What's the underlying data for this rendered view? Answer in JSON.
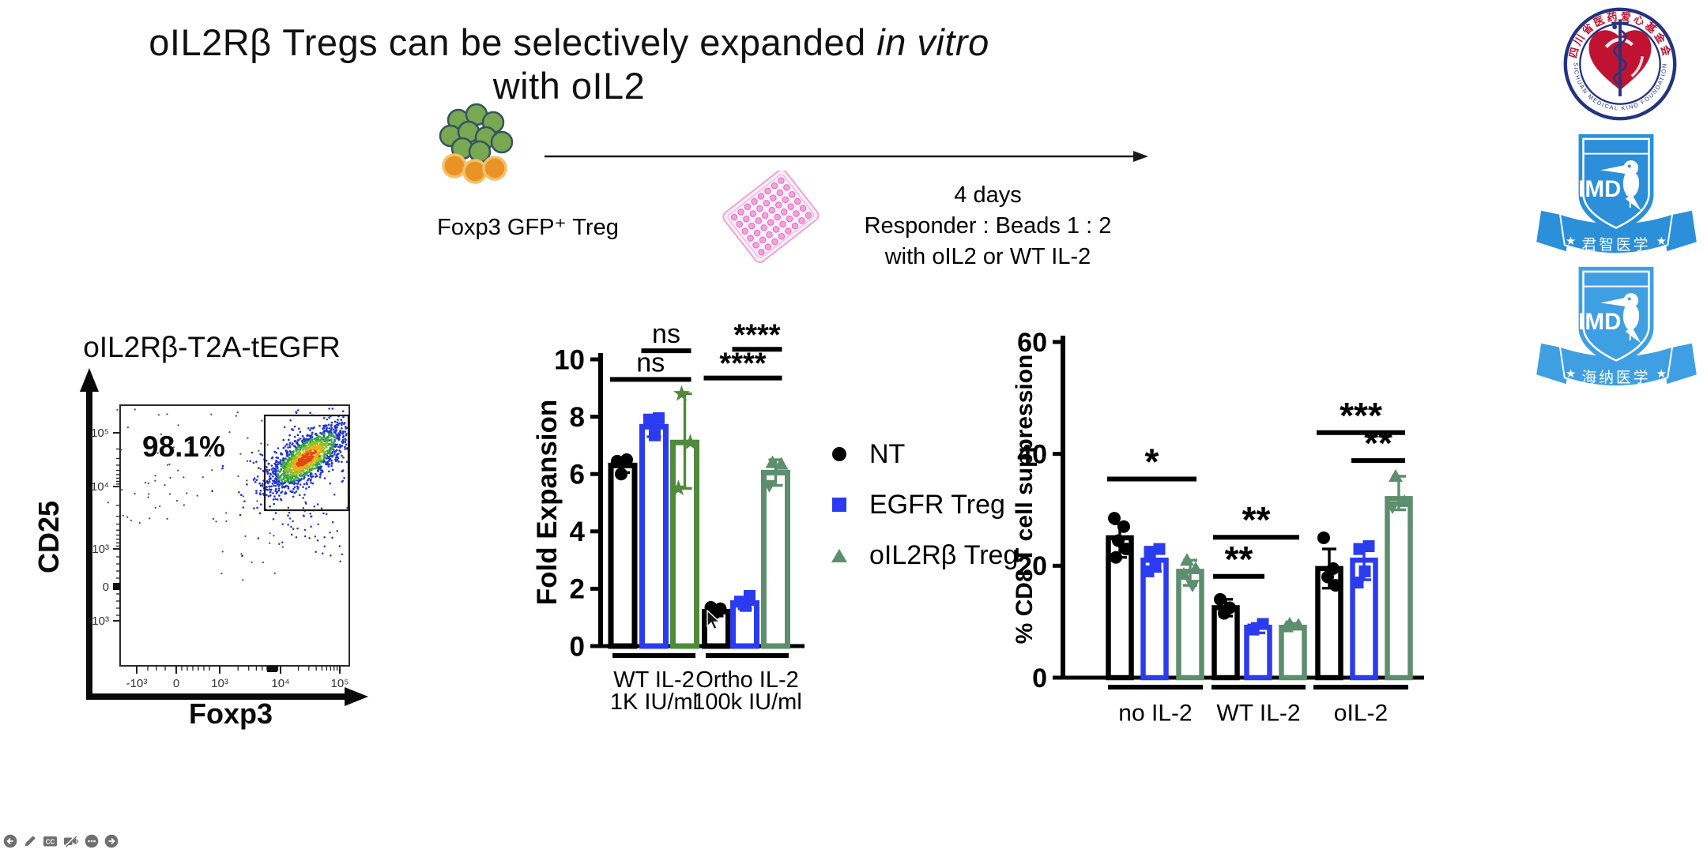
{
  "slide": {
    "background": "#ffffff",
    "title_segments": [
      {
        "text": "oIL2Rβ Tregs can be selectively expanded ",
        "italic": false
      },
      {
        "text": "in vitro",
        "italic": true
      },
      {
        "text": " with oIL2",
        "italic": false
      }
    ]
  },
  "schematic": {
    "cells_label": "Foxp3 GFP⁺ Treg",
    "duration": "4 days",
    "ratio": "Responder : Beads 1 : 2",
    "condition": "with oIL2 or WT IL-2",
    "cell_colors": {
      "green": "#79a852",
      "orange": "#e99327"
    },
    "plate_color": "#f2a3dc"
  },
  "flow_plot": {
    "title": "oIL2Rβ-T2A-tEGFR",
    "gate_percent": "98.1%",
    "x_label": "Foxp3",
    "y_label": "CD25",
    "x_ticks": [
      "-10³",
      "0",
      "10³",
      "10⁴",
      "10⁵"
    ],
    "y_ticks": [
      "10⁵",
      "10⁴",
      "10³",
      "0",
      "-10³"
    ]
  },
  "legend": [
    {
      "label": "NT",
      "marker": "circle",
      "color": "#000000"
    },
    {
      "label": "EGFR Treg",
      "marker": "square",
      "color": "#2b3cf0"
    },
    {
      "label": "oIL2Rβ Treg",
      "marker": "triangle",
      "color": "#5d8e6d"
    }
  ],
  "chart_data": [
    {
      "id": "fold_expansion",
      "type": "bar",
      "title": "",
      "xlabel": "",
      "ylabel": "Fold Expansion",
      "ylim": [
        0,
        10
      ],
      "yticks": [
        0,
        2,
        4,
        6,
        8,
        10
      ],
      "grid": false,
      "legend_position": "right",
      "categories": [
        "WT IL-2",
        "Ortho IL-2"
      ],
      "category_sublabels": [
        "1K IU/ml",
        "100k IU/ml"
      ],
      "series": [
        {
          "name": "NT",
          "marker": "circle",
          "color": "#000000",
          "values": [
            6.3,
            1.2
          ],
          "points": [
            [
              6.45,
              6.5,
              6.0
            ],
            [
              1.35,
              1.3,
              1.15
            ]
          ],
          "errors": [
            [
              6.05,
              6.55
            ],
            [
              1.05,
              1.35
            ]
          ]
        },
        {
          "name": "EGFR Treg",
          "marker": "square",
          "color": "#2b3cf0",
          "values": [
            7.65,
            1.5
          ],
          "points": [
            [
              7.95,
              7.9,
              7.35
            ],
            [
              1.75,
              1.55,
              1.4
            ]
          ],
          "errors": [
            [
              7.3,
              8.0
            ],
            [
              1.3,
              1.7
            ]
          ]
        },
        {
          "name": "oIL2Rβ Treg",
          "marker": "triangle",
          "markers": [
            "star",
            "triangle"
          ],
          "color": "#4f8b3b",
          "colors": [
            "#4f8b3b",
            "#5d8e6d"
          ],
          "values": [
            7.1,
            6.05
          ],
          "points": [
            [
              8.8,
              7.1,
              5.5
            ],
            [
              6.4,
              6.35,
              5.6
            ]
          ],
          "errors": [
            [
              5.5,
              8.8
            ],
            [
              5.6,
              6.5
            ]
          ]
        }
      ],
      "annotations": [
        {
          "label": "ns",
          "from": [
            0,
            0
          ],
          "to": [
            0,
            2
          ],
          "y": 9.3
        },
        {
          "label": "ns",
          "from": [
            0,
            1
          ],
          "to": [
            0,
            2
          ],
          "y": 10.3
        },
        {
          "label": "****",
          "from": [
            1,
            0
          ],
          "to": [
            1,
            2
          ],
          "y": 9.35
        },
        {
          "label": "****",
          "from": [
            1,
            1
          ],
          "to": [
            1,
            2
          ],
          "y": 10.35
        }
      ]
    },
    {
      "id": "cd8_suppression",
      "type": "bar",
      "title": "",
      "xlabel": "",
      "ylabel": "% CD8 T cell suppression",
      "ylim": [
        0,
        60
      ],
      "yticks": [
        0,
        20,
        40,
        60
      ],
      "grid": false,
      "categories": [
        "no IL-2",
        "WT IL-2",
        "oIL-2"
      ],
      "series": [
        {
          "name": "NT",
          "marker": "circle",
          "color": "#000000",
          "values": [
            25,
            12.5,
            19.5
          ],
          "points": [
            [
              28.5,
              27,
              24.5,
              23,
              21.5
            ],
            [
              14,
              12.5,
              11.5
            ],
            [
              25,
              19.5,
              18,
              16.5
            ]
          ],
          "errors": [
            [
              21.5,
              27.5
            ],
            [
              11,
              14
            ],
            [
              16,
              23
            ]
          ]
        },
        {
          "name": "EGFR Treg",
          "marker": "square",
          "color": "#2b3cf0",
          "values": [
            21,
            9,
            21
          ],
          "points": [
            [
              23,
              22.5,
              20,
              19
            ],
            [
              9.6,
              8.6
            ],
            [
              23.5,
              23,
              19,
              17
            ]
          ],
          "errors": [
            [
              19,
              23
            ],
            [
              8,
              9.7
            ],
            [
              17.5,
              23.5
            ]
          ]
        },
        {
          "name": "oIL2Rβ Treg",
          "marker": "triangle",
          "color": "#5d8e6d",
          "values": [
            19,
            9,
            32
          ],
          "points": [
            [
              21,
              19.5,
              18.5,
              16.5
            ],
            [
              9.6,
              9.4,
              9.1
            ],
            [
              36,
              31.5,
              30.5
            ]
          ],
          "errors": [
            [
              16.5,
              21
            ],
            [
              8.8,
              9.7
            ],
            [
              30,
              36
            ]
          ]
        }
      ],
      "annotations": [
        {
          "label": "*",
          "from": [
            0,
            0
          ],
          "to": [
            0,
            2
          ],
          "y": 35.5
        },
        {
          "label": "**",
          "from": [
            1,
            0
          ],
          "to": [
            1,
            1
          ],
          "y": 18.1
        },
        {
          "label": "**",
          "from": [
            1,
            0
          ],
          "to": [
            1,
            2
          ],
          "y": 25.1
        },
        {
          "label": "**",
          "from": [
            2,
            1
          ],
          "to": [
            2,
            2
          ],
          "y": 38.8
        },
        {
          "label": "***",
          "from": [
            2,
            0
          ],
          "to": [
            2,
            2
          ],
          "y": 43.8
        }
      ]
    },
    {
      "id": "flow_pseudocolor",
      "type": "scatter",
      "title": "oIL2Rβ-T2A-tEGFR",
      "xlabel": "Foxp3",
      "ylabel": "CD25",
      "x_ticks": [
        "-10³",
        "0",
        "10³",
        "10⁴",
        "10⁵"
      ],
      "y_ticks": [
        "10⁵",
        "10⁴",
        "10³",
        "0",
        "-10³"
      ],
      "gate": {
        "label": "98.1%",
        "region": "upper-right",
        "population": "Foxp3+ CD25+ dense pseudocolor cluster"
      }
    }
  ],
  "logos": {
    "foundation": {
      "cn": "四川省医药爱心基金会",
      "en": "SICHUAN MEDICAL KIND FOUNDATION",
      "ring_color": "#23337f",
      "emblem_color": "#bf1331"
    },
    "imd_top": {
      "abbr": "IMD",
      "banner": "君智医学",
      "color": "#2b8fd9"
    },
    "imd_bottom": {
      "abbr": "IMD",
      "banner": "海纳医学",
      "color": "#3f9fe3"
    }
  },
  "controls": [
    {
      "name": "back"
    },
    {
      "name": "edit"
    },
    {
      "name": "closed-captions",
      "label": "CC"
    },
    {
      "name": "camera-off"
    },
    {
      "name": "more-options"
    },
    {
      "name": "next"
    }
  ]
}
